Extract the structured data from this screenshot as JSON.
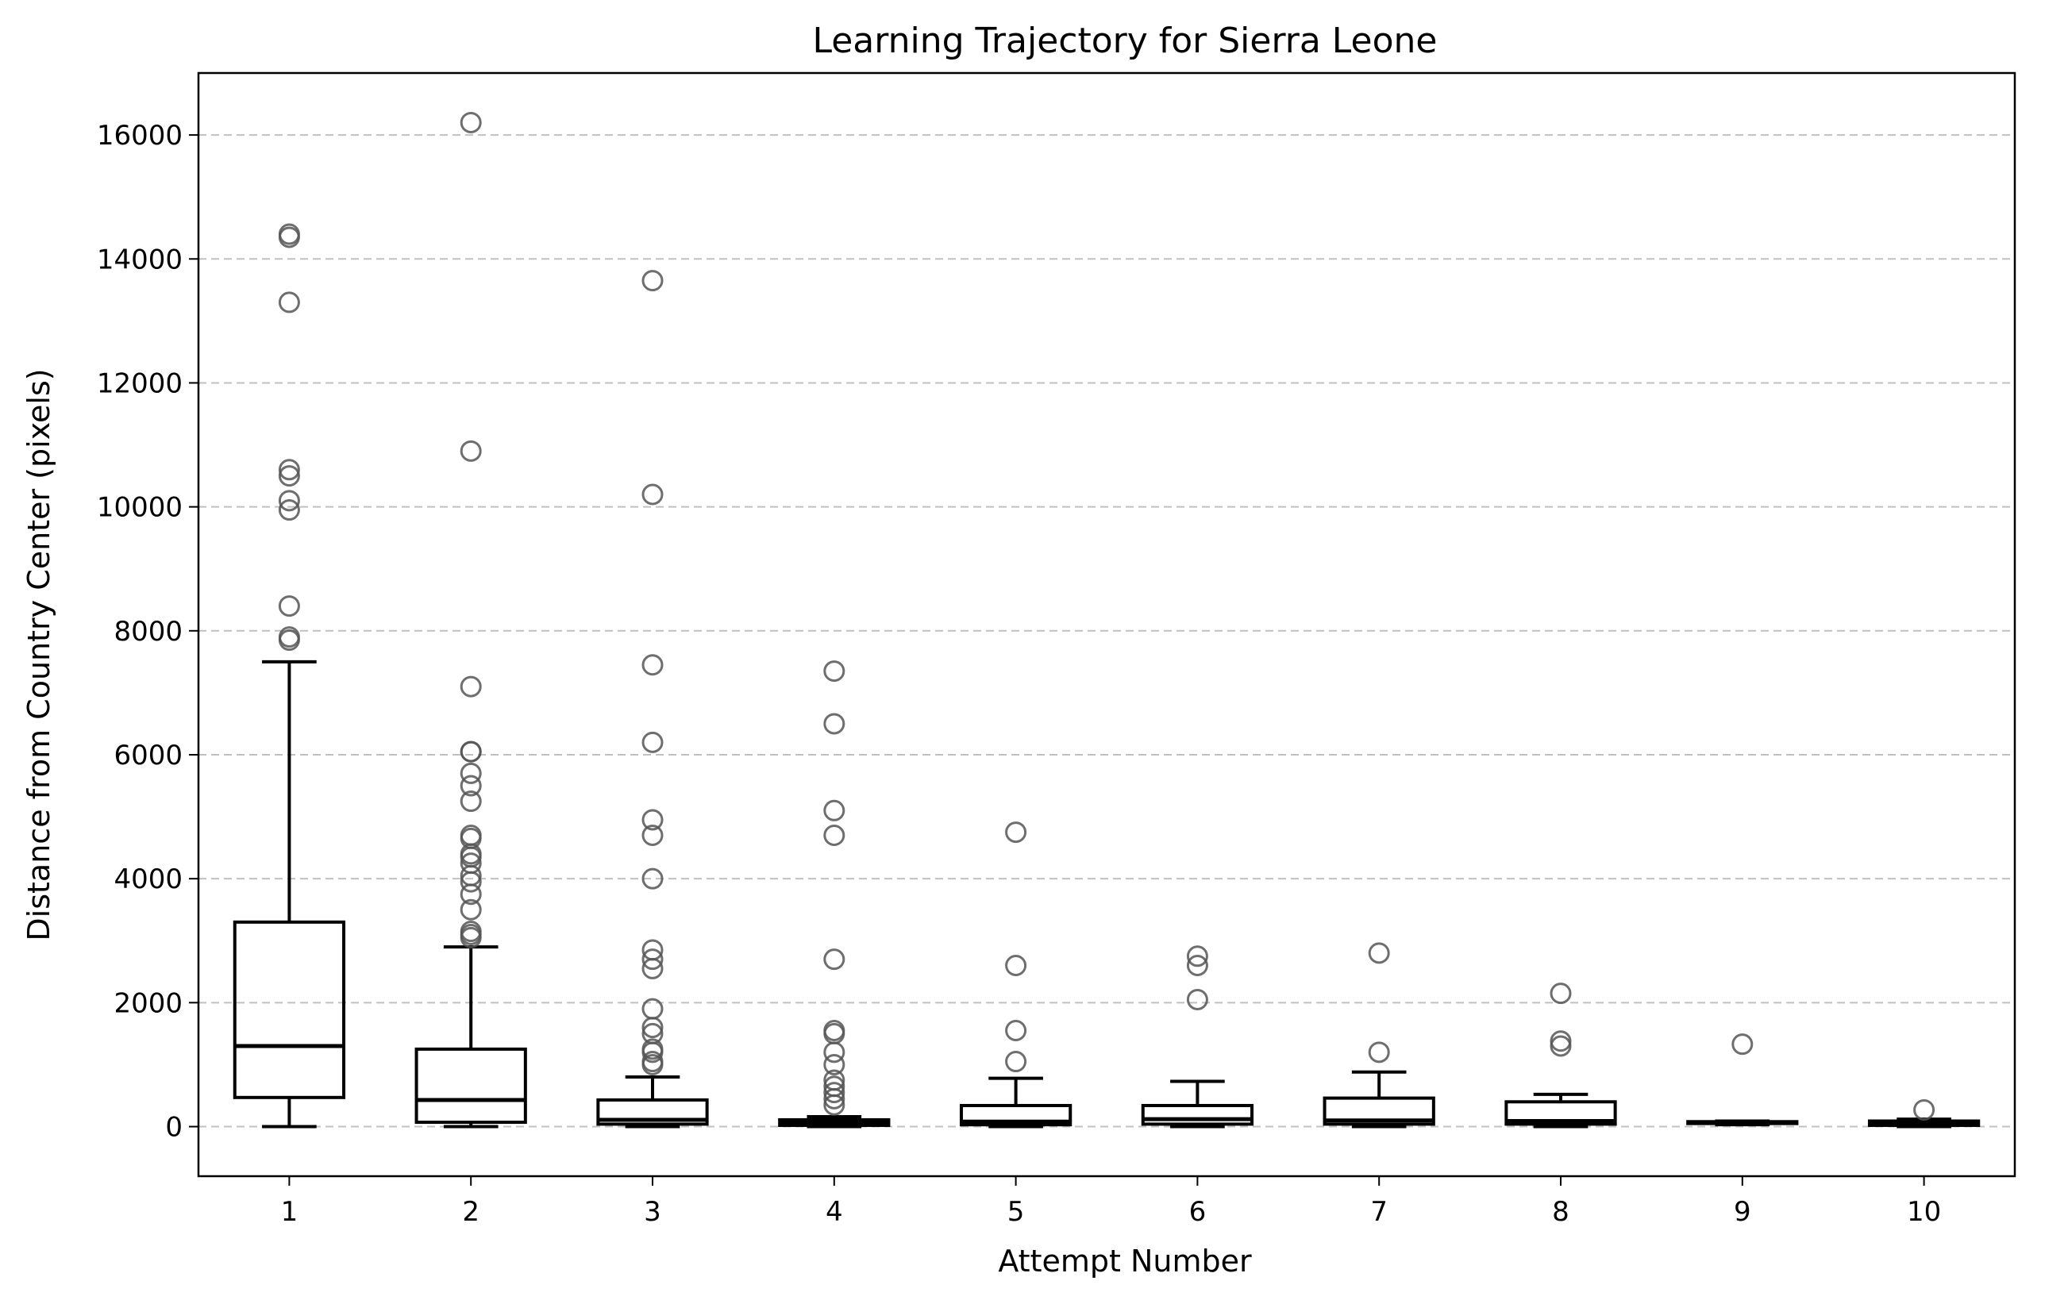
{
  "chart_data": {
    "type": "box",
    "title": "Learning Trajectory for Sierra Leone",
    "xlabel": "Attempt Number",
    "ylabel": "Distance from Country Center (pixels)",
    "categories": [
      "1",
      "2",
      "3",
      "4",
      "5",
      "6",
      "7",
      "8",
      "9",
      "10"
    ],
    "ylim": [
      -800,
      17000
    ],
    "yticks": [
      0,
      2000,
      4000,
      6000,
      8000,
      10000,
      12000,
      14000,
      16000
    ],
    "grid": {
      "axis": "y",
      "style": "dashed"
    },
    "boxes": [
      {
        "category": "1",
        "whisker_low": 0,
        "q1": 470,
        "median": 1300,
        "q3": 3300,
        "whisker_high": 7500,
        "outliers": [
          7850,
          7900,
          8400,
          9950,
          10100,
          10500,
          10600,
          13300,
          14350,
          14400
        ]
      },
      {
        "category": "2",
        "whisker_low": 0,
        "q1": 70,
        "median": 430,
        "q3": 1250,
        "whisker_high": 2900,
        "outliers": [
          3050,
          3100,
          3150,
          3500,
          3750,
          3950,
          4050,
          4250,
          4350,
          4400,
          4650,
          4700,
          5250,
          5500,
          5700,
          6050,
          6050,
          7100,
          10900,
          16200
        ]
      },
      {
        "category": "3",
        "whisker_low": 0,
        "q1": 40,
        "median": 110,
        "q3": 430,
        "whisker_high": 800,
        "outliers": [
          1000,
          1050,
          1200,
          1250,
          1500,
          1600,
          1900,
          2550,
          2700,
          2850,
          4000,
          4700,
          4950,
          6200,
          7450,
          10200,
          13650
        ]
      },
      {
        "category": "4",
        "whisker_low": 0,
        "q1": 20,
        "median": 60,
        "q3": 110,
        "whisker_high": 160,
        "outliers": [
          350,
          450,
          550,
          650,
          750,
          1000,
          1200,
          1500,
          1550,
          2700,
          4700,
          5100,
          6500,
          7350
        ]
      },
      {
        "category": "5",
        "whisker_low": 0,
        "q1": 30,
        "median": 80,
        "q3": 340,
        "whisker_high": 780,
        "outliers": [
          1050,
          1550,
          2600,
          4750
        ]
      },
      {
        "category": "6",
        "whisker_low": 0,
        "q1": 40,
        "median": 120,
        "q3": 340,
        "whisker_high": 730,
        "outliers": [
          2050,
          2600,
          2750
        ]
      },
      {
        "category": "7",
        "whisker_low": 0,
        "q1": 40,
        "median": 100,
        "q3": 460,
        "whisker_high": 880,
        "outliers": [
          1200,
          2800
        ]
      },
      {
        "category": "8",
        "whisker_low": 0,
        "q1": 40,
        "median": 90,
        "q3": 400,
        "whisker_high": 520,
        "outliers": [
          1300,
          1380,
          2150
        ]
      },
      {
        "category": "9",
        "whisker_low": 30,
        "q1": 50,
        "median": 70,
        "q3": 80,
        "whisker_high": 90,
        "outliers": [
          1330
        ]
      },
      {
        "category": "10",
        "whisker_low": 0,
        "q1": 20,
        "median": 60,
        "q3": 90,
        "whisker_high": 120,
        "outliers": [
          270
        ]
      }
    ],
    "colors": {
      "box": "#000000",
      "grid": "#c0c0c0",
      "outlier": "#555555"
    }
  }
}
